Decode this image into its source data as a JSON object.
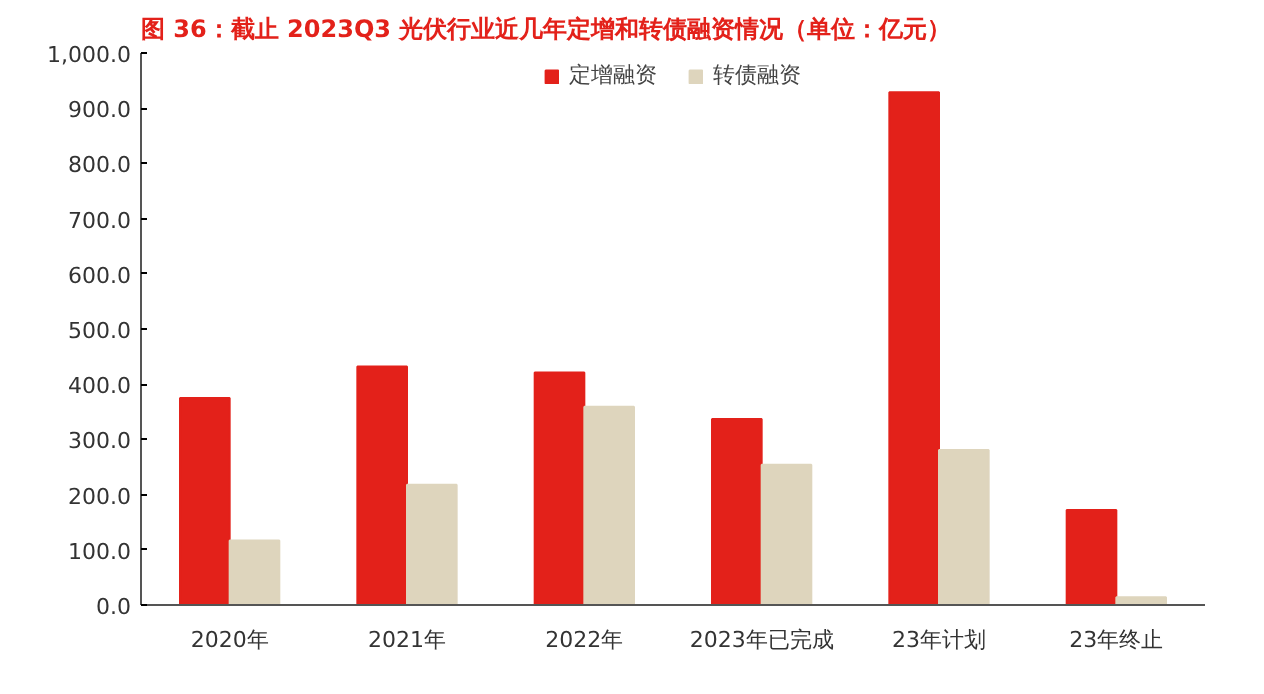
{
  "chart_data": {
    "type": "bar",
    "title": "图 36：截止 2023Q3 光伏行业近几年定增和转债融资情况（单位：亿元）",
    "categories": [
      "2020年",
      "2021年",
      "2022年",
      "2023年已完成",
      "23年计划",
      "23年终止"
    ],
    "series": [
      {
        "name": "定增融资",
        "color": "#e3211a",
        "values": [
          375,
          432,
          421,
          337,
          929,
          172
        ]
      },
      {
        "name": "转债融资",
        "color": "#ded5bd",
        "values": [
          117,
          218,
          359,
          254,
          281,
          14
        ]
      }
    ],
    "ylim": [
      0,
      1000
    ],
    "yticks": [
      {
        "value": 0,
        "label": "0.0"
      },
      {
        "value": 100,
        "label": "100.0"
      },
      {
        "value": 200,
        "label": "200.0"
      },
      {
        "value": 300,
        "label": "300.0"
      },
      {
        "value": 400,
        "label": "400.0"
      },
      {
        "value": 500,
        "label": "500.0"
      },
      {
        "value": 600,
        "label": "600.0"
      },
      {
        "value": 700,
        "label": "700.0"
      },
      {
        "value": 800,
        "label": "800.0"
      },
      {
        "value": 900,
        "label": "900.0"
      },
      {
        "value": 1000,
        "label": "1,000.0"
      }
    ],
    "grid": false,
    "legend": "top"
  }
}
